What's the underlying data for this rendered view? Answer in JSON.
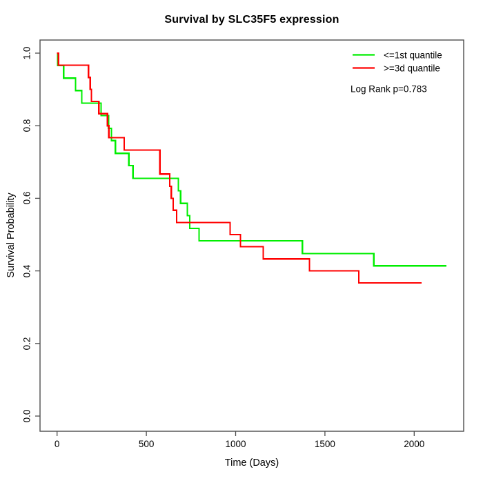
{
  "title": "Survival by SLC35F5 expression",
  "axes": {
    "x": {
      "label": "Time (Days)",
      "ticks": [
        0,
        500,
        1000,
        1500,
        2000
      ]
    },
    "y": {
      "label": "Survival Probability",
      "ticks": [
        0.0,
        0.2,
        0.4,
        0.6,
        0.8,
        1.0
      ]
    }
  },
  "legend": {
    "items": [
      {
        "label": "<=1st quantile",
        "color": "#00ee00"
      },
      {
        "label": ">=3d quantile",
        "color": "#ff0000"
      }
    ],
    "annotation": "Log Rank p=0.783"
  },
  "chart_data": {
    "type": "line",
    "subtype": "kaplan-meier-step",
    "title": "Survival by SLC35F5 expression",
    "xlabel": "Time (Days)",
    "ylabel": "Survival Probability",
    "xlim": [
      0,
      2200
    ],
    "ylim": [
      0,
      1
    ],
    "grid": false,
    "legend_position": "top-right",
    "annotation": "Log Rank p=0.783",
    "series": [
      {
        "name": "<=1st quantile",
        "color": "#00ee00",
        "steps_day_survival": [
          [
            0,
            1.0
          ],
          [
            3,
            0.966
          ],
          [
            37,
            0.931
          ],
          [
            103,
            0.897
          ],
          [
            138,
            0.862
          ],
          [
            247,
            0.828
          ],
          [
            288,
            0.793
          ],
          [
            305,
            0.759
          ],
          [
            327,
            0.724
          ],
          [
            402,
            0.69
          ],
          [
            425,
            0.655
          ],
          [
            679,
            0.621
          ],
          [
            692,
            0.586
          ],
          [
            730,
            0.552
          ],
          [
            743,
            0.517
          ],
          [
            795,
            0.483
          ],
          [
            1374,
            0.448
          ],
          [
            1774,
            0.414
          ],
          [
            2180,
            0.414
          ]
        ]
      },
      {
        "name": ">=3d quantile",
        "color": "#ff0000",
        "steps_day_survival": [
          [
            0,
            1.0
          ],
          [
            8,
            0.967
          ],
          [
            176,
            0.933
          ],
          [
            186,
            0.9
          ],
          [
            193,
            0.867
          ],
          [
            234,
            0.833
          ],
          [
            282,
            0.8
          ],
          [
            290,
            0.767
          ],
          [
            376,
            0.733
          ],
          [
            576,
            0.667
          ],
          [
            631,
            0.633
          ],
          [
            640,
            0.6
          ],
          [
            650,
            0.567
          ],
          [
            670,
            0.533
          ],
          [
            969,
            0.5
          ],
          [
            1027,
            0.467
          ],
          [
            1155,
            0.433
          ],
          [
            1413,
            0.4
          ],
          [
            1690,
            0.367
          ],
          [
            2042,
            0.367
          ]
        ]
      }
    ]
  }
}
